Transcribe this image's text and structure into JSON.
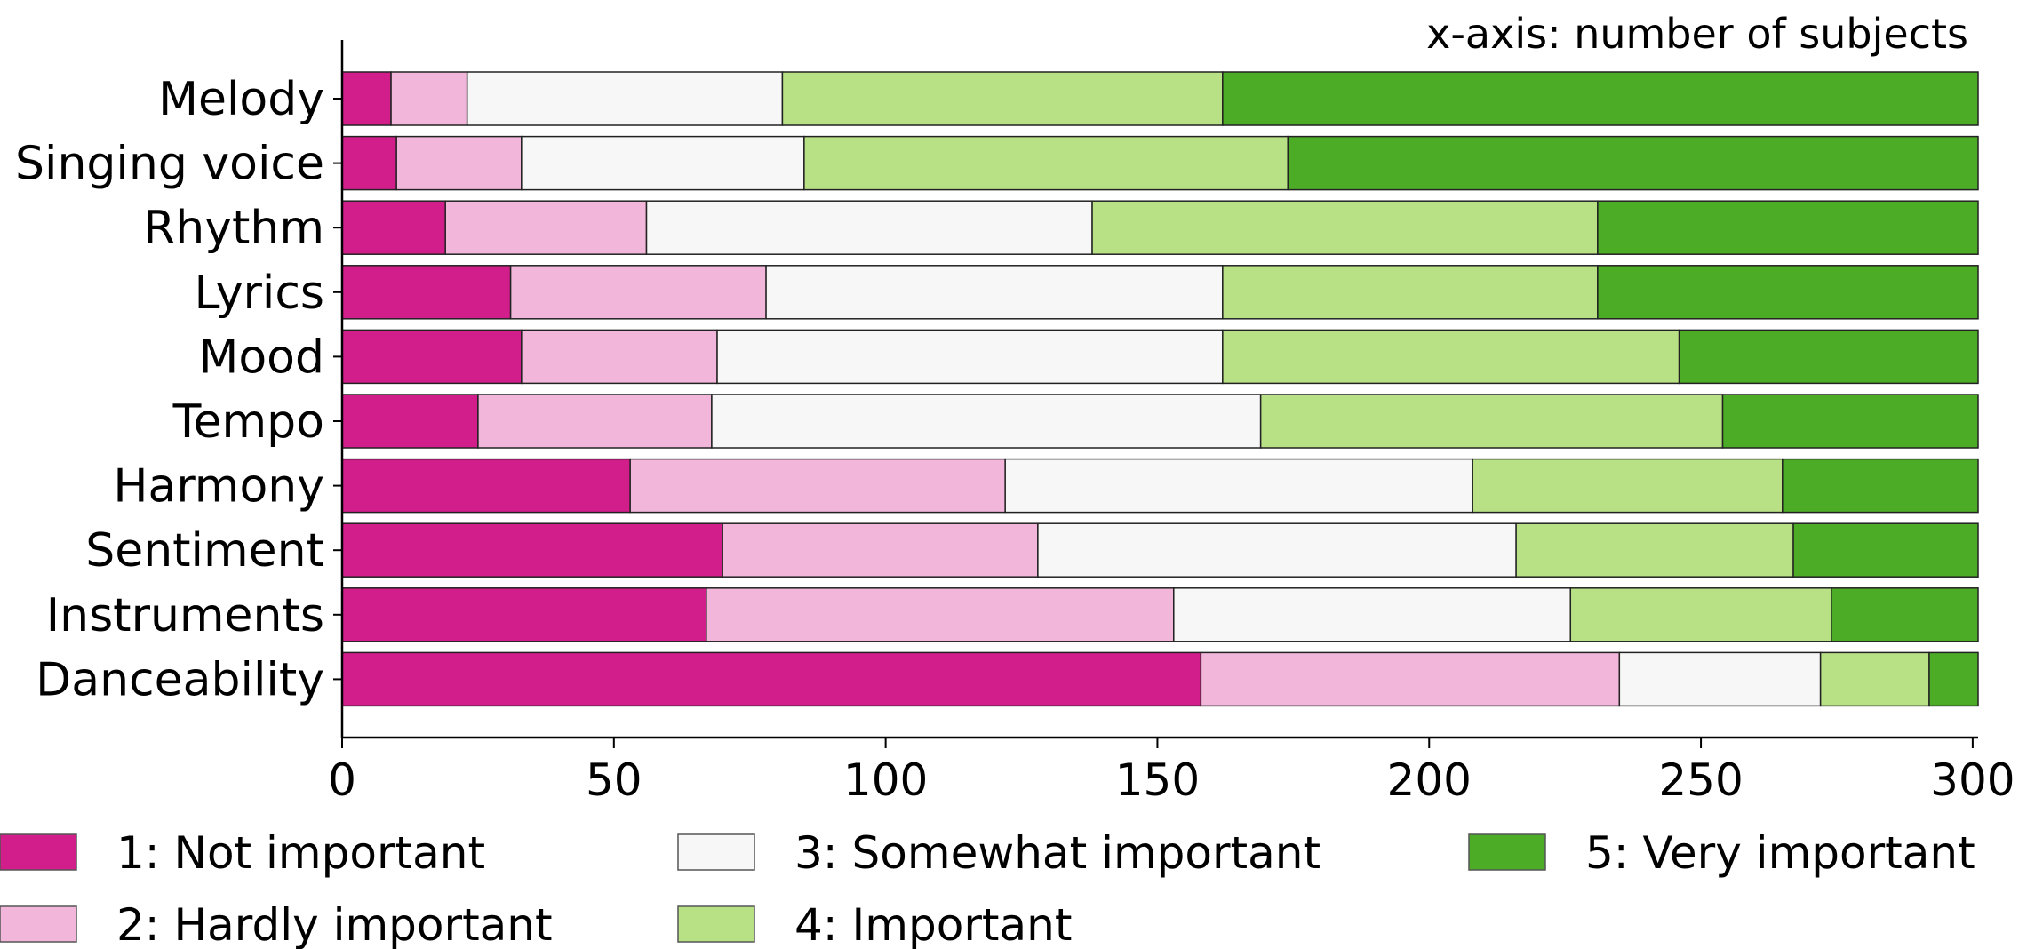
{
  "chart_data": {
    "type": "bar",
    "orientation": "horizontal",
    "stacked": true,
    "annotation": "x-axis: number of subjects",
    "title": "",
    "xlabel": "",
    "ylabel": "",
    "xlim": [
      0,
      301
    ],
    "xticks": [
      0,
      50,
      100,
      150,
      200,
      250,
      300
    ],
    "xtick_labels": [
      "0",
      "50",
      "100",
      "150",
      "200",
      "250",
      "300"
    ],
    "grid": false,
    "legend_position": "bottom",
    "categories": [
      "Melody",
      "Singing voice",
      "Rhythm",
      "Lyrics",
      "Mood",
      "Tempo",
      "Harmony",
      "Sentiment",
      "Instruments",
      "Danceability"
    ],
    "series": [
      {
        "name": "1: Not important",
        "color": "#d21e8a",
        "values": [
          9,
          10,
          19,
          31,
          33,
          25,
          53,
          70,
          67,
          158
        ]
      },
      {
        "name": "2: Hardly important",
        "color": "#f1b6da",
        "values": [
          14,
          23,
          37,
          47,
          36,
          43,
          69,
          58,
          86,
          77
        ]
      },
      {
        "name": "3: Somewhat important",
        "color": "#f7f7f7",
        "values": [
          58,
          52,
          82,
          84,
          93,
          101,
          86,
          88,
          73,
          37
        ]
      },
      {
        "name": "4: Important",
        "color": "#b8e186",
        "values": [
          81,
          89,
          93,
          69,
          84,
          85,
          57,
          51,
          48,
          20
        ]
      },
      {
        "name": "5: Very important",
        "color": "#4dac26",
        "values": [
          139,
          127,
          70,
          70,
          55,
          47,
          36,
          34,
          27,
          9
        ]
      }
    ]
  }
}
